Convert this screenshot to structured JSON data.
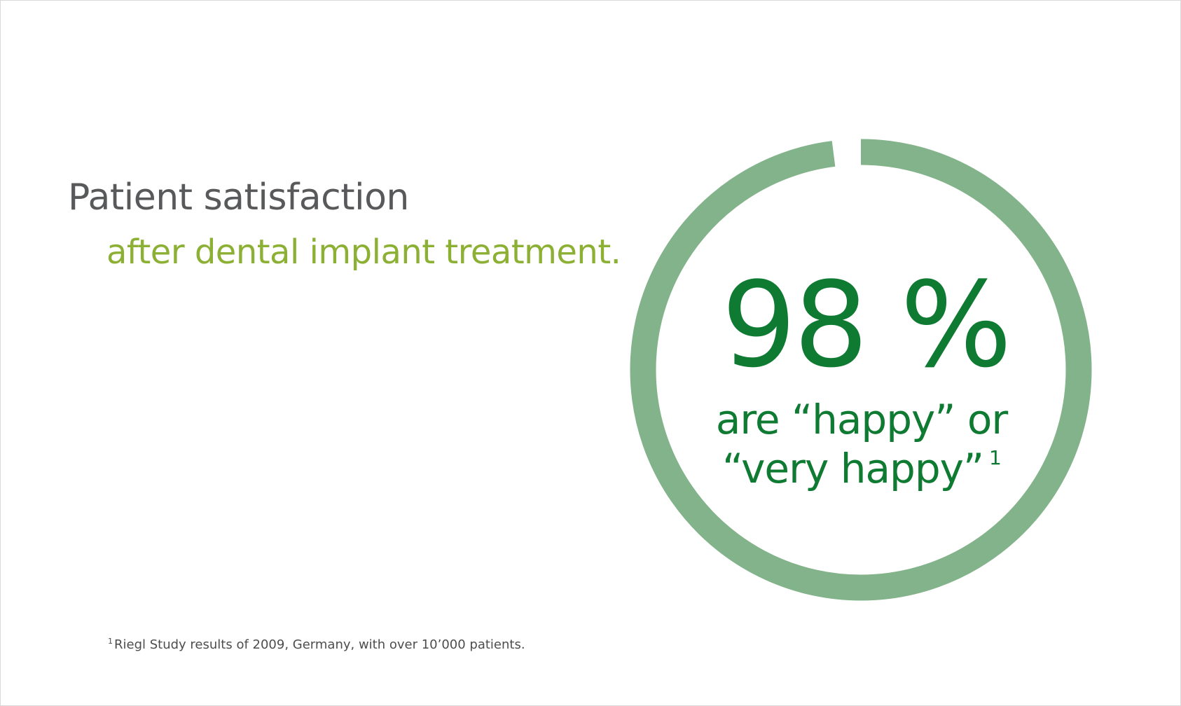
{
  "title": "Patient satisfaction",
  "subtitle": "after dental implant treatment.",
  "footnote": {
    "marker": "1",
    "text": "Riegl Study results of 2009, Germany, with over 10’000 patients."
  },
  "chart_data": {
    "type": "pie",
    "categories": [
      "are “happy” or “very happy”",
      ""
    ],
    "values": [
      98,
      2
    ],
    "value_label": "98 %",
    "label_line_1": "are “happy” or",
    "label_line_2": "“very happy”",
    "footnote_marker": "1",
    "colors": {
      "ring": "#83b38a",
      "text": "#0f7a32"
    }
  },
  "colors": {
    "title": "#58595b",
    "subtitle": "#8cb034",
    "accent": "#0f7a32",
    "ring": "#83b38a"
  }
}
